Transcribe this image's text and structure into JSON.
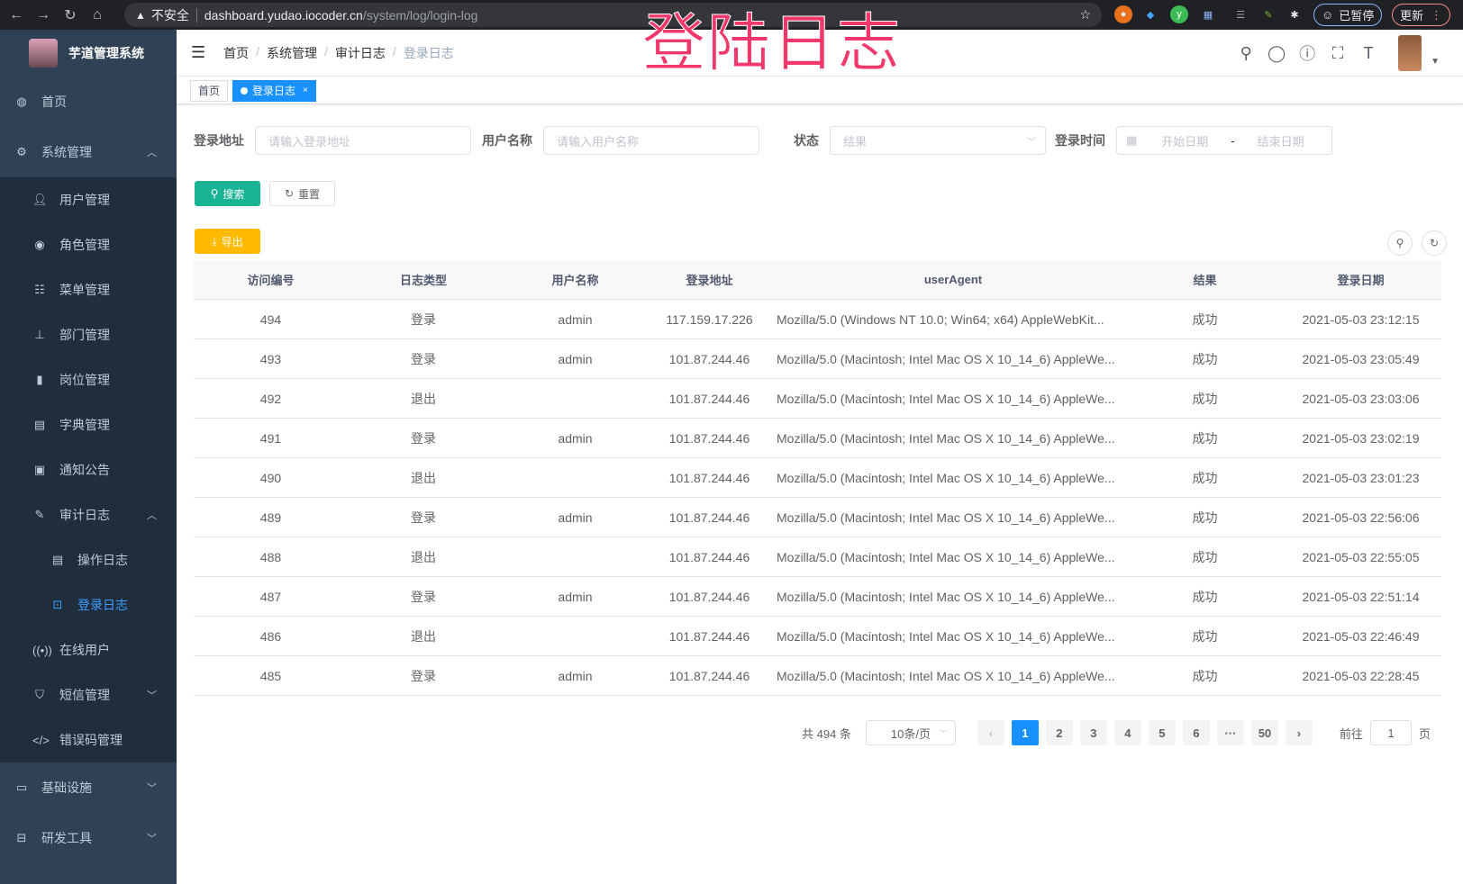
{
  "browser": {
    "security": "不安全",
    "url_host": "dashboard.yudao.iocoder.cn",
    "url_path": "/system/log/login-log",
    "profile": "已暂停",
    "update": "更新"
  },
  "overlay_title": "登陆日志",
  "app": {
    "name": "芋道管理系统"
  },
  "sidebar": {
    "items": [
      {
        "label": "首页",
        "icon": "dashboard-icon"
      },
      {
        "label": "系统管理",
        "icon": "gear-icon"
      },
      {
        "label": "用户管理",
        "icon": "user-icon"
      },
      {
        "label": "角色管理",
        "icon": "role-icon"
      },
      {
        "label": "菜单管理",
        "icon": "menu-icon"
      },
      {
        "label": "部门管理",
        "icon": "tree-icon"
      },
      {
        "label": "岗位管理",
        "icon": "post-icon"
      },
      {
        "label": "字典管理",
        "icon": "dict-icon"
      },
      {
        "label": "通知公告",
        "icon": "message-icon"
      },
      {
        "label": "审计日志",
        "icon": "log-icon"
      },
      {
        "label": "操作日志",
        "icon": "form-icon"
      },
      {
        "label": "登录日志",
        "icon": "logininfor-icon"
      },
      {
        "label": "在线用户",
        "icon": "online-icon"
      },
      {
        "label": "短信管理",
        "icon": "shield-icon"
      },
      {
        "label": "错误码管理",
        "icon": "code-icon"
      },
      {
        "label": "基础设施",
        "icon": "monitor-icon"
      },
      {
        "label": "研发工具",
        "icon": "tool-icon"
      }
    ]
  },
  "breadcrumb": [
    "首页",
    "系统管理",
    "审计日志",
    "登录日志"
  ],
  "tags": [
    "首页",
    "登录日志"
  ],
  "filters": {
    "address_label": "登录地址",
    "address_placeholder": "请输入登录地址",
    "user_label": "用户名称",
    "user_placeholder": "请输入用户名称",
    "status_label": "状态",
    "status_placeholder": "结果",
    "time_label": "登录时间",
    "start_placeholder": "开始日期",
    "range_sep": "-",
    "end_placeholder": "结束日期"
  },
  "buttons": {
    "search": "搜索",
    "reset": "重置",
    "export": "导出"
  },
  "colors": {
    "sidebar": "#304156",
    "accent": "#1890ff",
    "search": "#1ab394",
    "export": "#ffba00",
    "overlay": "#f0386b"
  },
  "table": {
    "columns": [
      "访问编号",
      "日志类型",
      "用户名称",
      "登录地址",
      "userAgent",
      "结果",
      "登录日期"
    ],
    "rows": [
      [
        "494",
        "登录",
        "admin",
        "117.159.17.226",
        "Mozilla/5.0 (Windows NT 10.0; Win64; x64) AppleWebKit...",
        "成功",
        "2021-05-03 23:12:15"
      ],
      [
        "493",
        "登录",
        "admin",
        "101.87.244.46",
        "Mozilla/5.0 (Macintosh; Intel Mac OS X 10_14_6) AppleWe...",
        "成功",
        "2021-05-03 23:05:49"
      ],
      [
        "492",
        "退出",
        "",
        "101.87.244.46",
        "Mozilla/5.0 (Macintosh; Intel Mac OS X 10_14_6) AppleWe...",
        "成功",
        "2021-05-03 23:03:06"
      ],
      [
        "491",
        "登录",
        "admin",
        "101.87.244.46",
        "Mozilla/5.0 (Macintosh; Intel Mac OS X 10_14_6) AppleWe...",
        "成功",
        "2021-05-03 23:02:19"
      ],
      [
        "490",
        "退出",
        "",
        "101.87.244.46",
        "Mozilla/5.0 (Macintosh; Intel Mac OS X 10_14_6) AppleWe...",
        "成功",
        "2021-05-03 23:01:23"
      ],
      [
        "489",
        "登录",
        "admin",
        "101.87.244.46",
        "Mozilla/5.0 (Macintosh; Intel Mac OS X 10_14_6) AppleWe...",
        "成功",
        "2021-05-03 22:56:06"
      ],
      [
        "488",
        "退出",
        "",
        "101.87.244.46",
        "Mozilla/5.0 (Macintosh; Intel Mac OS X 10_14_6) AppleWe...",
        "成功",
        "2021-05-03 22:55:05"
      ],
      [
        "487",
        "登录",
        "admin",
        "101.87.244.46",
        "Mozilla/5.0 (Macintosh; Intel Mac OS X 10_14_6) AppleWe...",
        "成功",
        "2021-05-03 22:51:14"
      ],
      [
        "486",
        "退出",
        "",
        "101.87.244.46",
        "Mozilla/5.0 (Macintosh; Intel Mac OS X 10_14_6) AppleWe...",
        "成功",
        "2021-05-03 22:46:49"
      ],
      [
        "485",
        "登录",
        "admin",
        "101.87.244.46",
        "Mozilla/5.0 (Macintosh; Intel Mac OS X 10_14_6) AppleWe...",
        "成功",
        "2021-05-03 22:28:45"
      ]
    ]
  },
  "pagination": {
    "total": "共 494 条",
    "page_size": "10条/页",
    "pages": [
      "1",
      "2",
      "3",
      "4",
      "5",
      "6",
      "···",
      "50"
    ],
    "current": "1",
    "goto_label": "前往",
    "goto_value": "1",
    "goto_suffix": "页"
  }
}
